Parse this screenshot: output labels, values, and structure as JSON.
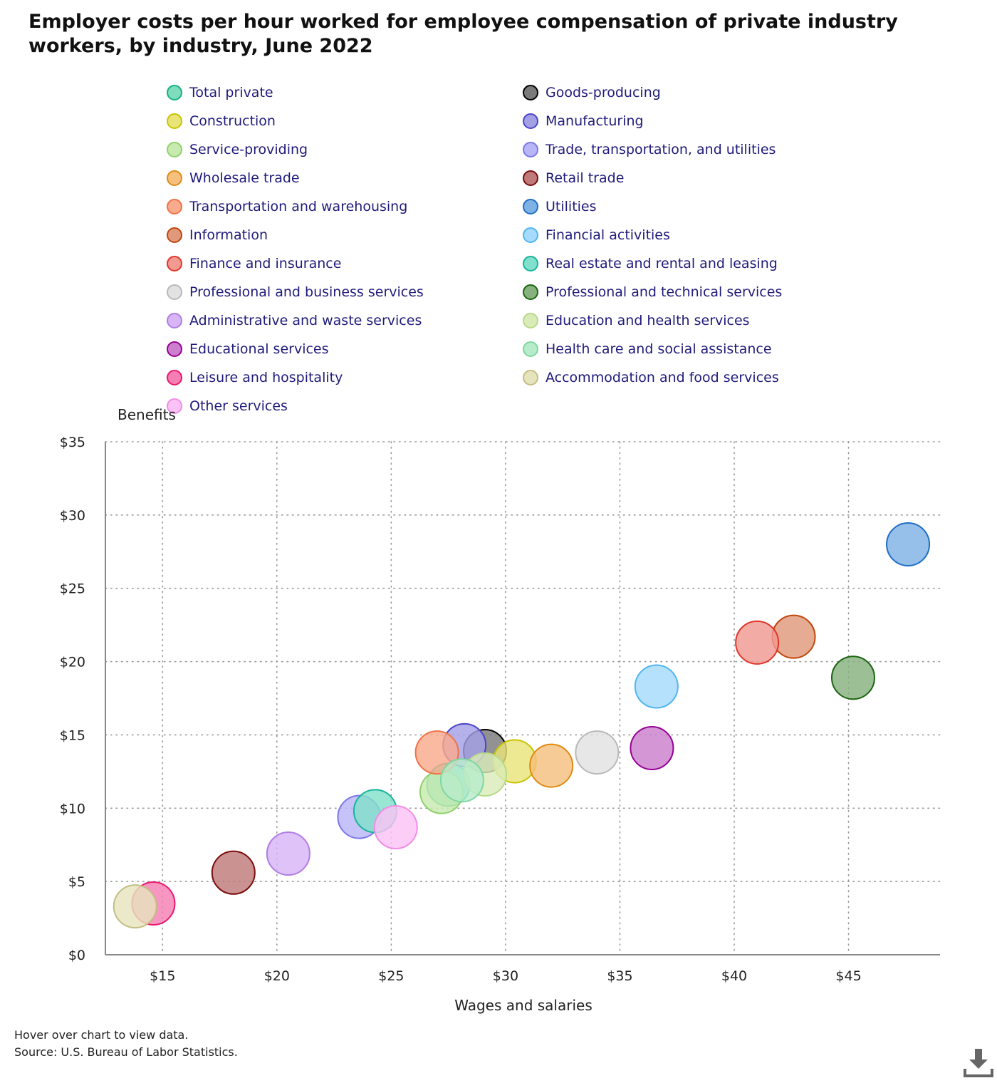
{
  "page": {
    "footer_note": "Hover over chart to view data.",
    "footer_source": "Source: U.S. Bureau of Labor Statistics.",
    "download_icon": "download-icon"
  },
  "chart_data": {
    "type": "scatter",
    "title": "Employer costs per hour worked for employee compensation of private industry workers, by industry, June 2022",
    "xlabel": "Wages and salaries",
    "ylabel": "Benefits",
    "xlim": [
      12.5,
      49
    ],
    "ylim": [
      0,
      35
    ],
    "x_ticks": [
      15,
      20,
      25,
      30,
      35,
      40,
      45
    ],
    "y_ticks": [
      0,
      5,
      10,
      15,
      20,
      25,
      30,
      35
    ],
    "x_tick_labels": [
      "$15",
      "$20",
      "$25",
      "$30",
      "$35",
      "$40",
      "$45"
    ],
    "y_tick_labels": [
      "$0",
      "$5",
      "$10",
      "$15",
      "$20",
      "$25",
      "$30",
      "$35"
    ],
    "grid": true,
    "legend_position": "top",
    "series": [
      {
        "name": "Total private",
        "x": 27.5,
        "y": 11.6,
        "fill": "#7fdcbc",
        "stroke": "#14b37f"
      },
      {
        "name": "Goods-producing",
        "x": 29.1,
        "y": 13.9,
        "fill": "#7a7a7a",
        "stroke": "#000000"
      },
      {
        "name": "Construction",
        "x": 30.4,
        "y": 13.2,
        "fill": "#e8e47a",
        "stroke": "#c9c400"
      },
      {
        "name": "Manufacturing",
        "x": 28.2,
        "y": 14.3,
        "fill": "#a3a0e6",
        "stroke": "#4c45c8"
      },
      {
        "name": "Service-providing",
        "x": 27.2,
        "y": 11.1,
        "fill": "#c8eab0",
        "stroke": "#8fd26a"
      },
      {
        "name": "Trade, transportation, and utilities",
        "x": 23.6,
        "y": 9.4,
        "fill": "#b9b6f7",
        "stroke": "#7d77ea"
      },
      {
        "name": "Wholesale trade",
        "x": 32.0,
        "y": 12.9,
        "fill": "#f5c07e",
        "stroke": "#e08a12"
      },
      {
        "name": "Retail trade",
        "x": 18.1,
        "y": 5.6,
        "fill": "#bf7a7a",
        "stroke": "#7a0c0c"
      },
      {
        "name": "Transportation and warehousing",
        "x": 27.0,
        "y": 13.8,
        "fill": "#f9ab8d",
        "stroke": "#f07245"
      },
      {
        "name": "Utilities",
        "x": 47.6,
        "y": 28.0,
        "fill": "#7fb2e4",
        "stroke": "#1e6ec6"
      },
      {
        "name": "Information",
        "x": 42.6,
        "y": 21.7,
        "fill": "#e09a7b",
        "stroke": "#c0460d"
      },
      {
        "name": "Financial activities",
        "x": 36.6,
        "y": 18.3,
        "fill": "#a6dbfb",
        "stroke": "#4fb6f2"
      },
      {
        "name": "Finance and insurance",
        "x": 41.0,
        "y": 21.3,
        "fill": "#f09a91",
        "stroke": "#e0362a"
      },
      {
        "name": "Real estate and rental and leasing",
        "x": 24.3,
        "y": 9.8,
        "fill": "#82e0cc",
        "stroke": "#16b59a"
      },
      {
        "name": "Professional and business services",
        "x": 34.0,
        "y": 13.8,
        "fill": "#e2e2e2",
        "stroke": "#b9b9b9"
      },
      {
        "name": "Professional and technical services",
        "x": 45.2,
        "y": 18.9,
        "fill": "#87b17e",
        "stroke": "#1d6513"
      },
      {
        "name": "Administrative and waste services",
        "x": 20.5,
        "y": 6.9,
        "fill": "#d8b5f5",
        "stroke": "#b27ce6"
      },
      {
        "name": "Education and health services",
        "x": 29.1,
        "y": 12.3,
        "fill": "#d9ecb8",
        "stroke": "#b8d98a"
      },
      {
        "name": "Educational services",
        "x": 36.4,
        "y": 14.1,
        "fill": "#cc7fcc",
        "stroke": "#960096"
      },
      {
        "name": "Health care and social assistance",
        "x": 28.1,
        "y": 11.9,
        "fill": "#b7ebcb",
        "stroke": "#7fd7a2"
      },
      {
        "name": "Leisure and hospitality",
        "x": 14.6,
        "y": 3.5,
        "fill": "#f57fb3",
        "stroke": "#e8196e"
      },
      {
        "name": "Accommodation and food services",
        "x": 13.8,
        "y": 3.3,
        "fill": "#e6e4bd",
        "stroke": "#c2be84"
      },
      {
        "name": "Other services",
        "x": 25.2,
        "y": 8.7,
        "fill": "#fbc2f5",
        "stroke": "#f08ee6"
      }
    ]
  }
}
